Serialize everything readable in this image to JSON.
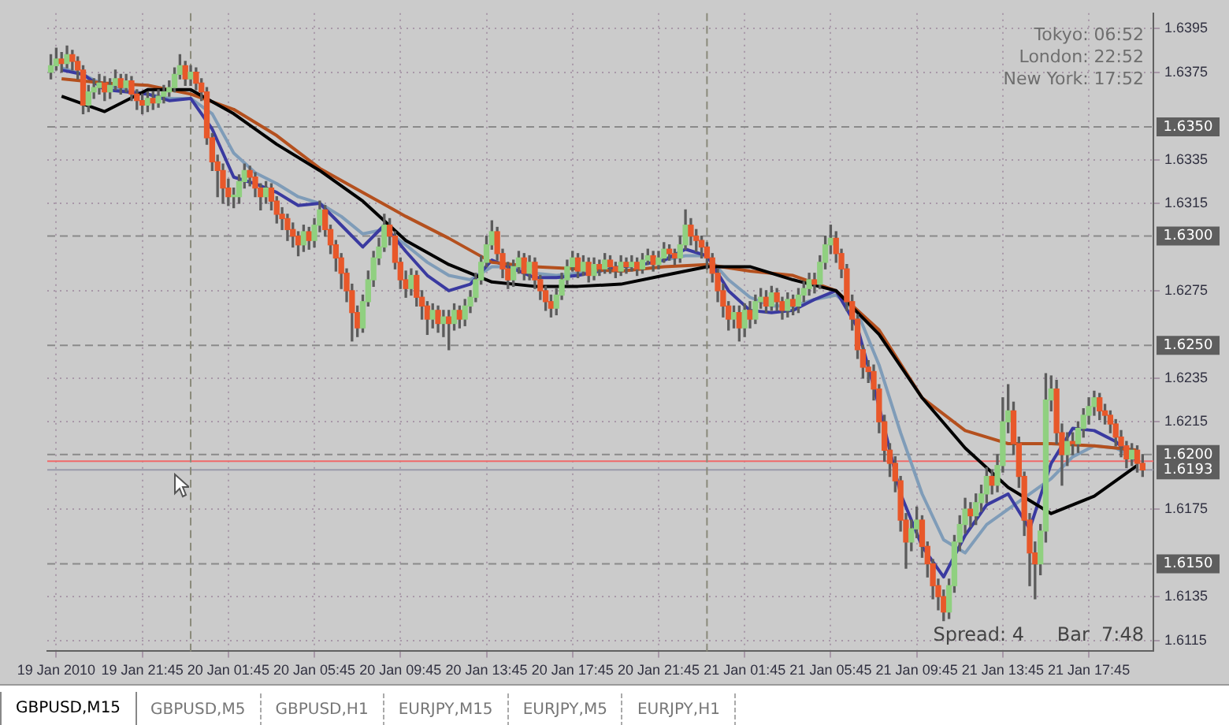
{
  "chart_data": {
    "type": "candlestick",
    "xlim": [
      "2010-01-19T17:20",
      "2010-01-21T20:45"
    ],
    "ylim": [
      1.611,
      1.6402
    ],
    "xticks": [
      {
        "value": "2010-01-19T17:45",
        "label": "19 Jan 2010"
      },
      {
        "value": "2010-01-19T21:45",
        "label": "19 Jan 21:45"
      },
      {
        "value": "2010-01-20T01:45",
        "label": "20 Jan 01:45"
      },
      {
        "value": "2010-01-20T05:45",
        "label": "20 Jan 05:45"
      },
      {
        "value": "2010-01-20T09:45",
        "label": "20 Jan 09:45"
      },
      {
        "value": "2010-01-20T13:45",
        "label": "20 Jan 13:45"
      },
      {
        "value": "2010-01-20T17:45",
        "label": "20 Jan 17:45"
      },
      {
        "value": "2010-01-20T21:45",
        "label": "20 Jan 21:45"
      },
      {
        "value": "2010-01-21T01:45",
        "label": "21 Jan 01:45"
      },
      {
        "value": "2010-01-21T05:45",
        "label": "21 Jan 05:45"
      },
      {
        "value": "2010-01-21T09:45",
        "label": "21 Jan 09:45"
      },
      {
        "value": "2010-01-21T13:45",
        "label": "21 Jan 13:45"
      },
      {
        "value": "2010-01-21T17:45",
        "label": "21 Jan 17:45"
      }
    ],
    "yticks": [
      1.6115,
      1.6135,
      1.6175,
      1.6215,
      1.6235,
      1.6275,
      1.6315,
      1.6335,
      1.6375,
      1.6395
    ],
    "grid": true,
    "x": [
      "2010-01-19T17:30",
      "2010-01-19T17:45",
      "2010-01-19T18:00",
      "2010-01-19T18:15",
      "2010-01-19T18:30",
      "2010-01-19T18:45",
      "2010-01-19T19:00",
      "2010-01-19T19:15",
      "2010-01-19T19:30",
      "2010-01-19T19:45",
      "2010-01-19T20:00",
      "2010-01-19T20:15",
      "2010-01-19T20:30",
      "2010-01-19T20:45",
      "2010-01-19T21:00",
      "2010-01-19T21:15",
      "2010-01-19T21:30",
      "2010-01-19T21:45",
      "2010-01-19T22:00",
      "2010-01-19T22:15",
      "2010-01-19T22:30",
      "2010-01-19T22:45",
      "2010-01-19T23:00",
      "2010-01-19T23:15",
      "2010-01-19T23:30",
      "2010-01-19T23:45",
      "2010-01-20T00:00",
      "2010-01-20T00:15",
      "2010-01-20T00:30",
      "2010-01-20T00:45",
      "2010-01-20T01:00",
      "2010-01-20T01:15",
      "2010-01-20T01:30",
      "2010-01-20T01:45",
      "2010-01-20T02:00",
      "2010-01-20T02:15",
      "2010-01-20T02:30",
      "2010-01-20T02:45",
      "2010-01-20T03:00",
      "2010-01-20T03:15",
      "2010-01-20T03:30",
      "2010-01-20T03:45",
      "2010-01-20T04:00",
      "2010-01-20T04:15",
      "2010-01-20T04:30",
      "2010-01-20T04:45",
      "2010-01-20T05:00",
      "2010-01-20T05:15",
      "2010-01-20T05:30",
      "2010-01-20T05:45",
      "2010-01-20T06:00",
      "2010-01-20T06:15",
      "2010-01-20T06:30",
      "2010-01-20T06:45",
      "2010-01-20T07:00",
      "2010-01-20T07:15",
      "2010-01-20T07:30",
      "2010-01-20T07:45",
      "2010-01-20T08:00",
      "2010-01-20T08:15",
      "2010-01-20T08:30",
      "2010-01-20T08:45",
      "2010-01-20T09:00",
      "2010-01-20T09:15",
      "2010-01-20T09:30",
      "2010-01-20T09:45",
      "2010-01-20T10:00",
      "2010-01-20T10:15",
      "2010-01-20T10:30",
      "2010-01-20T10:45",
      "2010-01-20T11:00",
      "2010-01-20T11:15",
      "2010-01-20T11:30",
      "2010-01-20T11:45",
      "2010-01-20T12:00",
      "2010-01-20T12:15",
      "2010-01-20T12:30",
      "2010-01-20T12:45",
      "2010-01-20T13:00",
      "2010-01-20T13:15",
      "2010-01-20T13:30",
      "2010-01-20T13:45",
      "2010-01-20T14:00",
      "2010-01-20T14:15",
      "2010-01-20T14:30",
      "2010-01-20T14:45",
      "2010-01-20T15:00",
      "2010-01-20T15:15",
      "2010-01-20T15:30",
      "2010-01-20T15:45",
      "2010-01-20T16:00",
      "2010-01-20T16:15",
      "2010-01-20T16:30",
      "2010-01-20T16:45",
      "2010-01-20T17:00",
      "2010-01-20T17:15",
      "2010-01-20T17:30",
      "2010-01-20T17:45",
      "2010-01-20T18:00",
      "2010-01-20T18:15",
      "2010-01-20T18:30",
      "2010-01-20T18:45",
      "2010-01-20T19:00",
      "2010-01-20T19:15",
      "2010-01-20T19:30",
      "2010-01-20T19:45",
      "2010-01-20T20:00",
      "2010-01-20T20:15",
      "2010-01-20T20:30",
      "2010-01-20T20:45",
      "2010-01-20T21:00",
      "2010-01-20T21:15",
      "2010-01-20T21:30",
      "2010-01-20T21:45",
      "2010-01-20T22:00",
      "2010-01-20T22:15",
      "2010-01-20T22:30",
      "2010-01-20T22:45",
      "2010-01-20T23:00",
      "2010-01-20T23:15",
      "2010-01-20T23:30",
      "2010-01-20T23:45",
      "2010-01-21T00:00",
      "2010-01-21T00:15",
      "2010-01-21T00:30",
      "2010-01-21T00:45",
      "2010-01-21T01:00",
      "2010-01-21T01:15",
      "2010-01-21T01:30",
      "2010-01-21T01:45",
      "2010-01-21T02:00",
      "2010-01-21T02:15",
      "2010-01-21T02:30",
      "2010-01-21T02:45",
      "2010-01-21T03:00",
      "2010-01-21T03:15",
      "2010-01-21T03:30",
      "2010-01-21T03:45",
      "2010-01-21T04:00",
      "2010-01-21T04:15",
      "2010-01-21T04:30",
      "2010-01-21T04:45",
      "2010-01-21T05:00",
      "2010-01-21T05:15",
      "2010-01-21T05:30",
      "2010-01-21T05:45",
      "2010-01-21T06:00",
      "2010-01-21T06:15",
      "2010-01-21T06:30",
      "2010-01-21T06:45",
      "2010-01-21T07:00",
      "2010-01-21T07:15",
      "2010-01-21T07:30",
      "2010-01-21T07:45",
      "2010-01-21T08:00",
      "2010-01-21T08:15",
      "2010-01-21T08:30",
      "2010-01-21T08:45",
      "2010-01-21T09:00",
      "2010-01-21T09:15",
      "2010-01-21T09:30",
      "2010-01-21T09:45",
      "2010-01-21T10:00",
      "2010-01-21T10:15",
      "2010-01-21T10:30",
      "2010-01-21T10:45",
      "2010-01-21T11:00",
      "2010-01-21T11:15",
      "2010-01-21T11:30",
      "2010-01-21T11:45",
      "2010-01-21T12:00",
      "2010-01-21T12:15",
      "2010-01-21T12:30",
      "2010-01-21T12:45",
      "2010-01-21T13:00",
      "2010-01-21T13:15",
      "2010-01-21T13:30",
      "2010-01-21T13:45",
      "2010-01-21T14:00",
      "2010-01-21T14:15",
      "2010-01-21T14:30",
      "2010-01-21T14:45",
      "2010-01-21T15:00",
      "2010-01-21T15:15",
      "2010-01-21T15:30",
      "2010-01-21T15:45",
      "2010-01-21T16:00",
      "2010-01-21T16:15",
      "2010-01-21T16:30",
      "2010-01-21T16:45",
      "2010-01-21T17:00",
      "2010-01-21T17:15",
      "2010-01-21T17:30",
      "2010-01-21T17:45",
      "2010-01-21T18:00",
      "2010-01-21T18:15",
      "2010-01-21T18:30",
      "2010-01-21T18:45",
      "2010-01-21T19:00",
      "2010-01-21T19:15",
      "2010-01-21T19:30",
      "2010-01-21T19:45",
      "2010-01-21T20:00",
      "2010-01-21T20:15"
    ],
    "ohlc": [
      [
        1.6375,
        1.6383,
        1.6372,
        1.6378
      ],
      [
        1.6378,
        1.6386,
        1.6376,
        1.6381
      ],
      [
        1.6381,
        1.6384,
        1.6375,
        1.6379
      ],
      [
        1.6379,
        1.6387,
        1.6377,
        1.6383
      ],
      [
        1.6383,
        1.6385,
        1.6376,
        1.638
      ],
      [
        1.638,
        1.6382,
        1.6372,
        1.6376
      ],
      [
        1.6376,
        1.6378,
        1.6356,
        1.636
      ],
      [
        1.636,
        1.6369,
        1.6357,
        1.6366
      ],
      [
        1.6366,
        1.6372,
        1.6363,
        1.6368
      ],
      [
        1.6368,
        1.6374,
        1.6365,
        1.637
      ],
      [
        1.637,
        1.6373,
        1.6362,
        1.6366
      ],
      [
        1.6366,
        1.6372,
        1.6363,
        1.6369
      ],
      [
        1.6369,
        1.6376,
        1.6367,
        1.6372
      ],
      [
        1.6372,
        1.6374,
        1.6365,
        1.6368
      ],
      [
        1.6368,
        1.6374,
        1.6366,
        1.6371
      ],
      [
        1.6371,
        1.6373,
        1.6362,
        1.6365
      ],
      [
        1.6365,
        1.6367,
        1.6358,
        1.6362
      ],
      [
        1.6362,
        1.6365,
        1.6356,
        1.636
      ],
      [
        1.636,
        1.6366,
        1.6357,
        1.6363
      ],
      [
        1.6363,
        1.6366,
        1.6358,
        1.6361
      ],
      [
        1.6361,
        1.6367,
        1.6359,
        1.6364
      ],
      [
        1.6364,
        1.6369,
        1.6361,
        1.6366
      ],
      [
        1.6366,
        1.6371,
        1.6364,
        1.6368
      ],
      [
        1.6368,
        1.6377,
        1.6366,
        1.6374
      ],
      [
        1.6374,
        1.6383,
        1.6372,
        1.6378
      ],
      [
        1.6378,
        1.638,
        1.6369,
        1.6372
      ],
      [
        1.6372,
        1.6378,
        1.6369,
        1.6375
      ],
      [
        1.6375,
        1.6377,
        1.6367,
        1.637
      ],
      [
        1.637,
        1.6372,
        1.6362,
        1.6366
      ],
      [
        1.6366,
        1.6368,
        1.6342,
        1.6345
      ],
      [
        1.6345,
        1.6347,
        1.633,
        1.6334
      ],
      [
        1.6334,
        1.6337,
        1.6318,
        1.633
      ],
      [
        1.633,
        1.6333,
        1.6315,
        1.6322
      ],
      [
        1.6322,
        1.6326,
        1.6314,
        1.6318
      ],
      [
        1.6318,
        1.6322,
        1.6313,
        1.6318
      ],
      [
        1.6318,
        1.6328,
        1.6315,
        1.6325
      ],
      [
        1.6325,
        1.6333,
        1.6322,
        1.633
      ],
      [
        1.633,
        1.6332,
        1.6323,
        1.6327
      ],
      [
        1.6327,
        1.6329,
        1.6318,
        1.6322
      ],
      [
        1.6322,
        1.6324,
        1.6312,
        1.6318
      ],
      [
        1.6318,
        1.6325,
        1.6315,
        1.6322
      ],
      [
        1.6322,
        1.6324,
        1.6312,
        1.6316
      ],
      [
        1.6316,
        1.6318,
        1.6306,
        1.631
      ],
      [
        1.631,
        1.6313,
        1.6303,
        1.6308
      ],
      [
        1.6308,
        1.631,
        1.6298,
        1.6303
      ],
      [
        1.6303,
        1.6306,
        1.6295,
        1.63
      ],
      [
        1.63,
        1.6302,
        1.6291,
        1.6296
      ],
      [
        1.6296,
        1.6305,
        1.6293,
        1.6302
      ],
      [
        1.6302,
        1.6304,
        1.6294,
        1.6298
      ],
      [
        1.6298,
        1.6308,
        1.6295,
        1.6305
      ],
      [
        1.6305,
        1.6316,
        1.6302,
        1.6312
      ],
      [
        1.6312,
        1.6314,
        1.63,
        1.6303
      ],
      [
        1.6303,
        1.6305,
        1.6292,
        1.6296
      ],
      [
        1.6296,
        1.6298,
        1.6284,
        1.629
      ],
      [
        1.629,
        1.6292,
        1.6276,
        1.6283
      ],
      [
        1.6283,
        1.6285,
        1.627,
        1.6275
      ],
      [
        1.6275,
        1.6278,
        1.6252,
        1.6265
      ],
      [
        1.6265,
        1.6268,
        1.6254,
        1.6258
      ],
      [
        1.6258,
        1.6273,
        1.6256,
        1.627
      ],
      [
        1.627,
        1.6284,
        1.6268,
        1.628
      ],
      [
        1.628,
        1.6293,
        1.6277,
        1.629
      ],
      [
        1.629,
        1.6299,
        1.6287,
        1.6295
      ],
      [
        1.6295,
        1.631,
        1.6293,
        1.6305
      ],
      [
        1.6305,
        1.6308,
        1.6296,
        1.63
      ],
      [
        1.63,
        1.6302,
        1.6285,
        1.6288
      ],
      [
        1.6288,
        1.629,
        1.6276,
        1.628
      ],
      [
        1.628,
        1.6284,
        1.6272,
        1.6276
      ],
      [
        1.6276,
        1.6285,
        1.6273,
        1.6282
      ],
      [
        1.6282,
        1.6284,
        1.6268,
        1.6272
      ],
      [
        1.6272,
        1.6275,
        1.6262,
        1.6268
      ],
      [
        1.6268,
        1.627,
        1.6255,
        1.6262
      ],
      [
        1.6262,
        1.6269,
        1.6258,
        1.6266
      ],
      [
        1.6266,
        1.6268,
        1.6256,
        1.626
      ],
      [
        1.626,
        1.6266,
        1.6254,
        1.6263
      ],
      [
        1.6263,
        1.6266,
        1.6248,
        1.626
      ],
      [
        1.626,
        1.6269,
        1.6257,
        1.6266
      ],
      [
        1.6266,
        1.6268,
        1.6258,
        1.6262
      ],
      [
        1.6262,
        1.6271,
        1.6259,
        1.6268
      ],
      [
        1.6268,
        1.6275,
        1.6265,
        1.6272
      ],
      [
        1.6272,
        1.6283,
        1.627,
        1.628
      ],
      [
        1.628,
        1.6291,
        1.6278,
        1.6288
      ],
      [
        1.6288,
        1.63,
        1.6286,
        1.6296
      ],
      [
        1.6296,
        1.6307,
        1.6294,
        1.6302
      ],
      [
        1.6302,
        1.6304,
        1.6289,
        1.6292
      ],
      [
        1.6292,
        1.6294,
        1.6281,
        1.6285
      ],
      [
        1.6285,
        1.6288,
        1.6276,
        1.628
      ],
      [
        1.628,
        1.6289,
        1.6277,
        1.6286
      ],
      [
        1.6286,
        1.6293,
        1.6283,
        1.629
      ],
      [
        1.629,
        1.6292,
        1.628,
        1.6283
      ],
      [
        1.6283,
        1.6291,
        1.628,
        1.6288
      ],
      [
        1.6288,
        1.629,
        1.6276,
        1.628
      ],
      [
        1.628,
        1.6282,
        1.6271,
        1.6275
      ],
      [
        1.6275,
        1.6277,
        1.6266,
        1.627
      ],
      [
        1.627,
        1.6273,
        1.6263,
        1.6267
      ],
      [
        1.6267,
        1.6276,
        1.6264,
        1.6273
      ],
      [
        1.6273,
        1.6283,
        1.6271,
        1.628
      ],
      [
        1.628,
        1.6289,
        1.6278,
        1.6286
      ],
      [
        1.6286,
        1.6293,
        1.6284,
        1.629
      ],
      [
        1.629,
        1.6292,
        1.6281,
        1.6284
      ],
      [
        1.6284,
        1.6291,
        1.6282,
        1.6288
      ],
      [
        1.6288,
        1.629,
        1.6279,
        1.6282
      ],
      [
        1.6282,
        1.629,
        1.628,
        1.6287
      ],
      [
        1.6287,
        1.6289,
        1.6282,
        1.6285
      ],
      [
        1.6285,
        1.6292,
        1.6283,
        1.6289
      ],
      [
        1.6289,
        1.6291,
        1.6283,
        1.6286
      ],
      [
        1.6286,
        1.6288,
        1.6281,
        1.6284
      ],
      [
        1.6284,
        1.6291,
        1.6282,
        1.6288
      ],
      [
        1.6288,
        1.629,
        1.6283,
        1.6286
      ],
      [
        1.6286,
        1.6291,
        1.6284,
        1.6288
      ],
      [
        1.6288,
        1.629,
        1.6282,
        1.6285
      ],
      [
        1.6285,
        1.6292,
        1.6283,
        1.6289
      ],
      [
        1.6289,
        1.6294,
        1.6287,
        1.6291
      ],
      [
        1.6291,
        1.6293,
        1.6284,
        1.6287
      ],
      [
        1.6287,
        1.6293,
        1.6285,
        1.629
      ],
      [
        1.629,
        1.6297,
        1.6288,
        1.6294
      ],
      [
        1.6294,
        1.6296,
        1.6289,
        1.6292
      ],
      [
        1.6292,
        1.6294,
        1.6287,
        1.629
      ],
      [
        1.629,
        1.63,
        1.6288,
        1.6296
      ],
      [
        1.6296,
        1.6312,
        1.6294,
        1.6305
      ],
      [
        1.6305,
        1.6308,
        1.6296,
        1.63
      ],
      [
        1.63,
        1.6303,
        1.6293,
        1.6298
      ],
      [
        1.6298,
        1.63,
        1.629,
        1.6295
      ],
      [
        1.6295,
        1.6297,
        1.6285,
        1.629
      ],
      [
        1.629,
        1.6292,
        1.6279,
        1.6283
      ],
      [
        1.6283,
        1.6285,
        1.627,
        1.6275
      ],
      [
        1.6275,
        1.6278,
        1.6263,
        1.6268
      ],
      [
        1.6268,
        1.627,
        1.6257,
        1.6262
      ],
      [
        1.6262,
        1.6268,
        1.6258,
        1.6265
      ],
      [
        1.6265,
        1.6268,
        1.6252,
        1.6258
      ],
      [
        1.6258,
        1.6269,
        1.6254,
        1.6266
      ],
      [
        1.6266,
        1.627,
        1.6258,
        1.6262
      ],
      [
        1.6262,
        1.6273,
        1.626,
        1.627
      ],
      [
        1.627,
        1.6276,
        1.6267,
        1.6272
      ],
      [
        1.6272,
        1.6275,
        1.6265,
        1.6268
      ],
      [
        1.6268,
        1.6277,
        1.6266,
        1.6274
      ],
      [
        1.6274,
        1.6276,
        1.6266,
        1.627
      ],
      [
        1.627,
        1.6272,
        1.6262,
        1.6266
      ],
      [
        1.6266,
        1.6274,
        1.6263,
        1.6271
      ],
      [
        1.6271,
        1.6273,
        1.6264,
        1.6268
      ],
      [
        1.6268,
        1.6276,
        1.6265,
        1.6273
      ],
      [
        1.6273,
        1.6279,
        1.627,
        1.6276
      ],
      [
        1.6276,
        1.6283,
        1.6273,
        1.628
      ],
      [
        1.628,
        1.6283,
        1.6274,
        1.6278
      ],
      [
        1.6278,
        1.6291,
        1.6276,
        1.6288
      ],
      [
        1.6288,
        1.63,
        1.6285,
        1.6296
      ],
      [
        1.6296,
        1.6305,
        1.6292,
        1.6299
      ],
      [
        1.6299,
        1.6302,
        1.6288,
        1.6292
      ],
      [
        1.6292,
        1.6294,
        1.6281,
        1.6285
      ],
      [
        1.6285,
        1.6287,
        1.6266,
        1.627
      ],
      [
        1.627,
        1.6273,
        1.6257,
        1.6262
      ],
      [
        1.6262,
        1.6264,
        1.6244,
        1.6248
      ],
      [
        1.6248,
        1.625,
        1.6235,
        1.624
      ],
      [
        1.624,
        1.6243,
        1.6233,
        1.6238
      ],
      [
        1.6238,
        1.6241,
        1.6225,
        1.623
      ],
      [
        1.623,
        1.6232,
        1.621,
        1.6215
      ],
      [
        1.6215,
        1.6218,
        1.6197,
        1.6202
      ],
      [
        1.6202,
        1.6205,
        1.619,
        1.6196
      ],
      [
        1.6196,
        1.6199,
        1.6183,
        1.6188
      ],
      [
        1.6188,
        1.619,
        1.6165,
        1.617
      ],
      [
        1.617,
        1.6173,
        1.6148,
        1.616
      ],
      [
        1.616,
        1.617,
        1.6156,
        1.6166
      ],
      [
        1.6166,
        1.6176,
        1.6162,
        1.617
      ],
      [
        1.617,
        1.6172,
        1.6153,
        1.6158
      ],
      [
        1.6158,
        1.616,
        1.6144,
        1.615
      ],
      [
        1.615,
        1.6152,
        1.6134,
        1.614
      ],
      [
        1.614,
        1.6143,
        1.6129,
        1.6135
      ],
      [
        1.6135,
        1.6138,
        1.6124,
        1.6128
      ],
      [
        1.6128,
        1.6143,
        1.6125,
        1.614
      ],
      [
        1.614,
        1.6163,
        1.6137,
        1.616
      ],
      [
        1.616,
        1.6172,
        1.6156,
        1.6168
      ],
      [
        1.6168,
        1.618,
        1.6164,
        1.6175
      ],
      [
        1.6175,
        1.6178,
        1.6167,
        1.6172
      ],
      [
        1.6172,
        1.6182,
        1.6168,
        1.6178
      ],
      [
        1.6178,
        1.6186,
        1.6174,
        1.6182
      ],
      [
        1.6182,
        1.6194,
        1.6178,
        1.619
      ],
      [
        1.619,
        1.6193,
        1.6182,
        1.6186
      ],
      [
        1.6186,
        1.62,
        1.6183,
        1.6195
      ],
      [
        1.6195,
        1.6226,
        1.6192,
        1.6215
      ],
      [
        1.6215,
        1.6232,
        1.621,
        1.622
      ],
      [
        1.622,
        1.6224,
        1.62,
        1.6205
      ],
      [
        1.6205,
        1.6208,
        1.6185,
        1.619
      ],
      [
        1.619,
        1.6192,
        1.6163,
        1.617
      ],
      [
        1.617,
        1.6173,
        1.614,
        1.6155
      ],
      [
        1.6155,
        1.616,
        1.6134,
        1.615
      ],
      [
        1.615,
        1.6168,
        1.6145,
        1.6165
      ],
      [
        1.6165,
        1.6237,
        1.616,
        1.6225
      ],
      [
        1.6225,
        1.6236,
        1.622,
        1.623
      ],
      [
        1.623,
        1.6234,
        1.6205,
        1.621
      ],
      [
        1.621,
        1.6214,
        1.6186,
        1.62
      ],
      [
        1.62,
        1.621,
        1.6195,
        1.6206
      ],
      [
        1.6206,
        1.621,
        1.62,
        1.6205
      ],
      [
        1.6205,
        1.6215,
        1.6201,
        1.6212
      ],
      [
        1.6212,
        1.6221,
        1.6208,
        1.6218
      ],
      [
        1.6218,
        1.6226,
        1.6214,
        1.6222
      ],
      [
        1.6222,
        1.6229,
        1.6218,
        1.6226
      ],
      [
        1.6226,
        1.6228,
        1.6216,
        1.622
      ],
      [
        1.622,
        1.6223,
        1.6214,
        1.6218
      ],
      [
        1.6218,
        1.622,
        1.621,
        1.6214
      ],
      [
        1.6214,
        1.6216,
        1.6204,
        1.6208
      ],
      [
        1.6208,
        1.6211,
        1.6199,
        1.6204
      ],
      [
        1.6204,
        1.6206,
        1.6194,
        1.6198
      ],
      [
        1.6198,
        1.6205,
        1.6195,
        1.6202
      ],
      [
        1.6202,
        1.6204,
        1.6192,
        1.6196
      ],
      [
        1.6196,
        1.62,
        1.619,
        1.6193
      ]
    ],
    "series": [
      {
        "type": "line",
        "color": "#000000",
        "x": [
          "2010-01-19T18:00",
          "2010-01-19T20:00",
          "2010-01-19T22:00",
          "2010-01-20T00:00",
          "2010-01-20T02:00",
          "2010-01-20T04:00",
          "2010-01-20T06:00",
          "2010-01-20T08:00",
          "2010-01-20T10:00",
          "2010-01-20T12:00",
          "2010-01-20T14:00",
          "2010-01-20T16:00",
          "2010-01-20T18:00",
          "2010-01-20T20:00",
          "2010-01-20T22:00",
          "2010-01-21T00:00",
          "2010-01-21T02:00",
          "2010-01-21T04:00",
          "2010-01-21T06:00",
          "2010-01-21T08:00",
          "2010-01-21T10:00",
          "2010-01-21T12:00",
          "2010-01-21T14:00",
          "2010-01-21T16:00",
          "2010-01-21T18:00",
          "2010-01-21T20:00"
        ],
        "values": [
          1.6364,
          1.6357,
          1.6367,
          1.6367,
          1.6356,
          1.6342,
          1.633,
          1.6316,
          1.6298,
          1.6287,
          1.6279,
          1.6277,
          1.6277,
          1.6278,
          1.6282,
          1.6286,
          1.6286,
          1.628,
          1.6275,
          1.6255,
          1.6226,
          1.6203,
          1.6185,
          1.6173,
          1.6181,
          1.6195
        ]
      },
      {
        "type": "line",
        "color": "#b4501e",
        "x": [
          "2010-01-19T18:00",
          "2010-01-19T20:00",
          "2010-01-19T22:00",
          "2010-01-20T00:00",
          "2010-01-20T02:00",
          "2010-01-20T04:00",
          "2010-01-20T06:00",
          "2010-01-20T08:00",
          "2010-01-20T10:00",
          "2010-01-20T12:00",
          "2010-01-20T14:00",
          "2010-01-20T16:00",
          "2010-01-20T18:00",
          "2010-01-20T20:00",
          "2010-01-20T22:00",
          "2010-01-21T00:00",
          "2010-01-21T02:00",
          "2010-01-21T04:00",
          "2010-01-21T06:00",
          "2010-01-21T08:00",
          "2010-01-21T10:00",
          "2010-01-21T12:00",
          "2010-01-21T14:00",
          "2010-01-21T16:00",
          "2010-01-21T18:00",
          "2010-01-21T20:00"
        ],
        "values": [
          1.6372,
          1.637,
          1.6369,
          1.6365,
          1.6358,
          1.6346,
          1.6331,
          1.632,
          1.6309,
          1.6299,
          1.6288,
          1.6286,
          1.6285,
          1.6284,
          1.6286,
          1.6287,
          1.6284,
          1.6282,
          1.6275,
          1.6257,
          1.6226,
          1.6211,
          1.6205,
          1.6205,
          1.6204,
          1.6202
        ]
      },
      {
        "type": "line",
        "color": "#3a3aa0",
        "x": [
          "2010-01-19T18:00",
          "2010-01-19T19:00",
          "2010-01-19T20:00",
          "2010-01-19T21:00",
          "2010-01-19T22:00",
          "2010-01-19T23:00",
          "2010-01-20T00:00",
          "2010-01-20T01:00",
          "2010-01-20T02:00",
          "2010-01-20T03:00",
          "2010-01-20T04:00",
          "2010-01-20T05:00",
          "2010-01-20T06:00",
          "2010-01-20T07:00",
          "2010-01-20T08:00",
          "2010-01-20T09:00",
          "2010-01-20T10:00",
          "2010-01-20T11:00",
          "2010-01-20T12:00",
          "2010-01-20T13:00",
          "2010-01-20T14:00",
          "2010-01-20T15:00",
          "2010-01-20T16:00",
          "2010-01-20T17:00",
          "2010-01-20T18:00",
          "2010-01-20T19:00",
          "2010-01-20T20:00",
          "2010-01-20T21:00",
          "2010-01-20T22:00",
          "2010-01-20T23:00",
          "2010-01-21T00:00",
          "2010-01-21T01:00",
          "2010-01-21T02:00",
          "2010-01-21T03:00",
          "2010-01-21T04:00",
          "2010-01-21T05:00",
          "2010-01-21T06:00",
          "2010-01-21T07:00",
          "2010-01-21T08:00",
          "2010-01-21T09:00",
          "2010-01-21T10:00",
          "2010-01-21T11:00",
          "2010-01-21T12:00",
          "2010-01-21T13:00",
          "2010-01-21T14:00",
          "2010-01-21T15:00",
          "2010-01-21T16:00",
          "2010-01-21T17:00",
          "2010-01-21T18:00",
          "2010-01-21T19:00",
          "2010-01-21T20:00"
        ],
        "values": [
          1.6376,
          1.6374,
          1.6367,
          1.6366,
          1.6365,
          1.6362,
          1.6363,
          1.6349,
          1.6327,
          1.6324,
          1.632,
          1.6314,
          1.6315,
          1.6305,
          1.6295,
          1.6305,
          1.6293,
          1.6282,
          1.6275,
          1.6278,
          1.6289,
          1.6285,
          1.6281,
          1.6281,
          1.6282,
          1.6284,
          1.6286,
          1.6287,
          1.6289,
          1.6294,
          1.6291,
          1.6275,
          1.6266,
          1.6265,
          1.6266,
          1.6271,
          1.6275,
          1.6258,
          1.6222,
          1.6182,
          1.6158,
          1.6144,
          1.6163,
          1.6177,
          1.6182,
          1.6166,
          1.6196,
          1.6212,
          1.6211,
          1.6206,
          1.6197
        ]
      },
      {
        "type": "line",
        "color": "#7f9cb8",
        "x": [
          "2010-01-19T18:00",
          "2010-01-19T19:00",
          "2010-01-19T20:00",
          "2010-01-19T21:00",
          "2010-01-19T22:00",
          "2010-01-19T23:00",
          "2010-01-20T00:00",
          "2010-01-20T01:00",
          "2010-01-20T02:00",
          "2010-01-20T03:00",
          "2010-01-20T04:00",
          "2010-01-20T05:00",
          "2010-01-20T06:00",
          "2010-01-20T07:00",
          "2010-01-20T08:00",
          "2010-01-20T09:00",
          "2010-01-20T10:00",
          "2010-01-20T11:00",
          "2010-01-20T12:00",
          "2010-01-20T13:00",
          "2010-01-20T14:00",
          "2010-01-20T15:00",
          "2010-01-20T16:00",
          "2010-01-20T17:00",
          "2010-01-20T18:00",
          "2010-01-20T19:00",
          "2010-01-20T20:00",
          "2010-01-20T21:00",
          "2010-01-20T22:00",
          "2010-01-20T23:00",
          "2010-01-21T00:00",
          "2010-01-21T01:00",
          "2010-01-21T02:00",
          "2010-01-21T03:00",
          "2010-01-21T04:00",
          "2010-01-21T05:00",
          "2010-01-21T06:00",
          "2010-01-21T07:00",
          "2010-01-21T08:00",
          "2010-01-21T09:00",
          "2010-01-21T10:00",
          "2010-01-21T11:00",
          "2010-01-21T12:00",
          "2010-01-21T13:00",
          "2010-01-21T14:00",
          "2010-01-21T15:00",
          "2010-01-21T16:00",
          "2010-01-21T17:00",
          "2010-01-21T18:00",
          "2010-01-21T19:00",
          "2010-01-21T20:00"
        ],
        "values": [
          1.6377,
          1.6374,
          1.6369,
          1.6367,
          1.6365,
          1.6363,
          1.6363,
          1.6356,
          1.6338,
          1.6329,
          1.6324,
          1.6318,
          1.6315,
          1.6309,
          1.6301,
          1.6303,
          1.6296,
          1.6288,
          1.6282,
          1.628,
          1.6286,
          1.6286,
          1.6283,
          1.6282,
          1.6283,
          1.6284,
          1.6286,
          1.6287,
          1.6289,
          1.6291,
          1.6291,
          1.628,
          1.6272,
          1.6268,
          1.6268,
          1.6271,
          1.6273,
          1.6265,
          1.6241,
          1.621,
          1.6182,
          1.6161,
          1.6155,
          1.6168,
          1.6175,
          1.6182,
          1.6189,
          1.6199,
          1.6204,
          1.6203,
          1.6198
        ]
      }
    ],
    "ref_lines": [
      {
        "axis": "y",
        "value": 1.635,
        "label": "1.6350",
        "color": "#8a8a8a",
        "line_style": "dashed"
      },
      {
        "axis": "y",
        "value": 1.63,
        "label": "1.6300",
        "color": "#8a8a8a",
        "line_style": "dashed"
      },
      {
        "axis": "y",
        "value": 1.625,
        "label": "1.6250",
        "color": "#8a8a8a",
        "line_style": "dashed"
      },
      {
        "axis": "y",
        "value": 1.62,
        "label": "1.6200",
        "color": "#8a8a8a",
        "line_style": "dashed"
      },
      {
        "axis": "y",
        "value": 1.615,
        "label": "1.6150",
        "color": "#8a8a8a",
        "line_style": "dashed"
      },
      {
        "axis": "y",
        "value": 1.6197,
        "color": "#f06a6a",
        "line_style": "solid"
      },
      {
        "axis": "y",
        "value": 1.6193,
        "label": "1.6193",
        "color": "#9a9aaa",
        "line_style": "solid"
      },
      {
        "axis": "x",
        "value": "2010-01-20T00:00",
        "color": "#8a8a7a",
        "line_style": "dashed"
      },
      {
        "axis": "x",
        "value": "2010-01-21T00:00",
        "color": "#8a8a7a",
        "line_style": "dashed"
      }
    ],
    "annotations": [
      "Tokyo: 06:52",
      "London: 22:52",
      "New York: 17:52",
      "Spread: 4",
      "Bar  7:48",
      "GBPUSD,M15",
      "GBPUSD,M5",
      "GBPUSD,H1",
      "EURJPY,M15",
      "EURJPY,M5",
      "EURJPY,H1"
    ]
  }
}
